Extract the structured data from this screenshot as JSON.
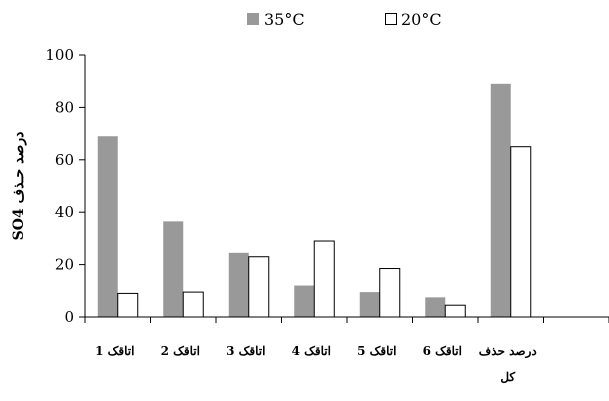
{
  "chart_data": {
    "type": "bar",
    "ylabel": "SO4 درصد حـذف",
    "ylim": [
      0,
      100
    ],
    "yticks": [
      0,
      20,
      40,
      60,
      80,
      100
    ],
    "grid": false,
    "legend_position": "top",
    "categories": [
      [
        "1 اتاقک"
      ],
      [
        "2 اتاقک"
      ],
      [
        "3 اتاقک"
      ],
      [
        "4 اتاقک"
      ],
      [
        "5 اتاقک"
      ],
      [
        "6 اتاقک"
      ],
      [
        "درصد حذف",
        "کل"
      ],
      [
        ""
      ]
    ],
    "series": [
      {
        "name": "35°C",
        "color": "#999999",
        "values": [
          69,
          36.5,
          24.5,
          12,
          9.5,
          7.5,
          89,
          null
        ]
      },
      {
        "name": "20°C",
        "color": "#ffffff",
        "values": [
          9,
          9.5,
          23,
          29,
          18.5,
          4.5,
          65,
          null
        ]
      }
    ]
  }
}
